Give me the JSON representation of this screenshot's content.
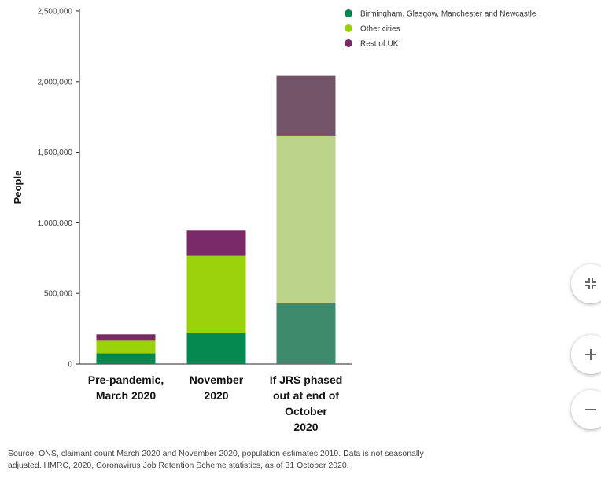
{
  "chart_data": {
    "type": "bar",
    "stacked": true,
    "categories": [
      [
        "Pre-pandemic,",
        "March 2020"
      ],
      [
        "November",
        "2020"
      ],
      [
        "If JRS phased",
        "out at end of",
        "October",
        "2020"
      ]
    ],
    "series": [
      {
        "name": "Birmingham, Glasgow, Manchester and Newcastle",
        "values": [
          75000,
          220000,
          435000
        ],
        "colors": [
          "#05884f",
          "#05884f",
          "#3e8a6c"
        ]
      },
      {
        "name": "Other cities",
        "values": [
          90000,
          550000,
          1180000
        ],
        "colors": [
          "#9bd10a",
          "#9bd10a",
          "#bcd48a"
        ]
      },
      {
        "name": "Rest of UK",
        "values": [
          45000,
          175000,
          425000
        ],
        "colors": [
          "#7a2a66",
          "#7a2a66",
          "#745469"
        ]
      }
    ],
    "ylabel": "People",
    "xlabel": "",
    "ylim": [
      0,
      2500000
    ],
    "yticks": [
      0,
      500000,
      1000000,
      1500000,
      2000000,
      2500000
    ],
    "ytick_labels": [
      "0",
      "500,000",
      "1,000,000",
      "1,500,000",
      "2,000,000",
      "2,500,000"
    ],
    "legend_position": "top-right",
    "grid": false
  },
  "source_note": "Source: ONS, claimant count March 2020 and November 2020, population estimates 2019. Data is not seasonally adjusted. HMRC, 2020, Coronavirus Job Retention Scheme statistics, as of 31 October 2020.",
  "controls": {
    "collapse_icon": "collapse-icon",
    "zoom_in_icon": "plus-icon",
    "zoom_out_icon": "minus-icon"
  }
}
